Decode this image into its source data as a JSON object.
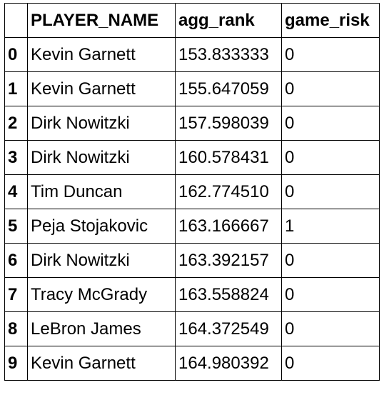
{
  "table": {
    "columns": [
      "",
      "PLAYER_NAME",
      "agg_rank",
      "game_risk"
    ],
    "rows": [
      {
        "index": "0",
        "player_name": "Kevin Garnett",
        "agg_rank": "153.833333",
        "game_risk": "0"
      },
      {
        "index": "1",
        "player_name": "Kevin Garnett",
        "agg_rank": "155.647059",
        "game_risk": "0"
      },
      {
        "index": "2",
        "player_name": "Dirk Nowitzki",
        "agg_rank": "157.598039",
        "game_risk": "0"
      },
      {
        "index": "3",
        "player_name": "Dirk Nowitzki",
        "agg_rank": "160.578431",
        "game_risk": "0"
      },
      {
        "index": "4",
        "player_name": "Tim Duncan",
        "agg_rank": "162.774510",
        "game_risk": "0"
      },
      {
        "index": "5",
        "player_name": "Peja Stojakovic",
        "agg_rank": "163.166667",
        "game_risk": "1"
      },
      {
        "index": "6",
        "player_name": "Dirk Nowitzki",
        "agg_rank": "163.392157",
        "game_risk": "0"
      },
      {
        "index": "7",
        "player_name": "Tracy McGrady",
        "agg_rank": "163.558824",
        "game_risk": "0"
      },
      {
        "index": "8",
        "player_name": "LeBron James",
        "agg_rank": "164.372549",
        "game_risk": "0"
      },
      {
        "index": "9",
        "player_name": "Kevin Garnett",
        "agg_rank": "164.980392",
        "game_risk": "0"
      }
    ]
  }
}
